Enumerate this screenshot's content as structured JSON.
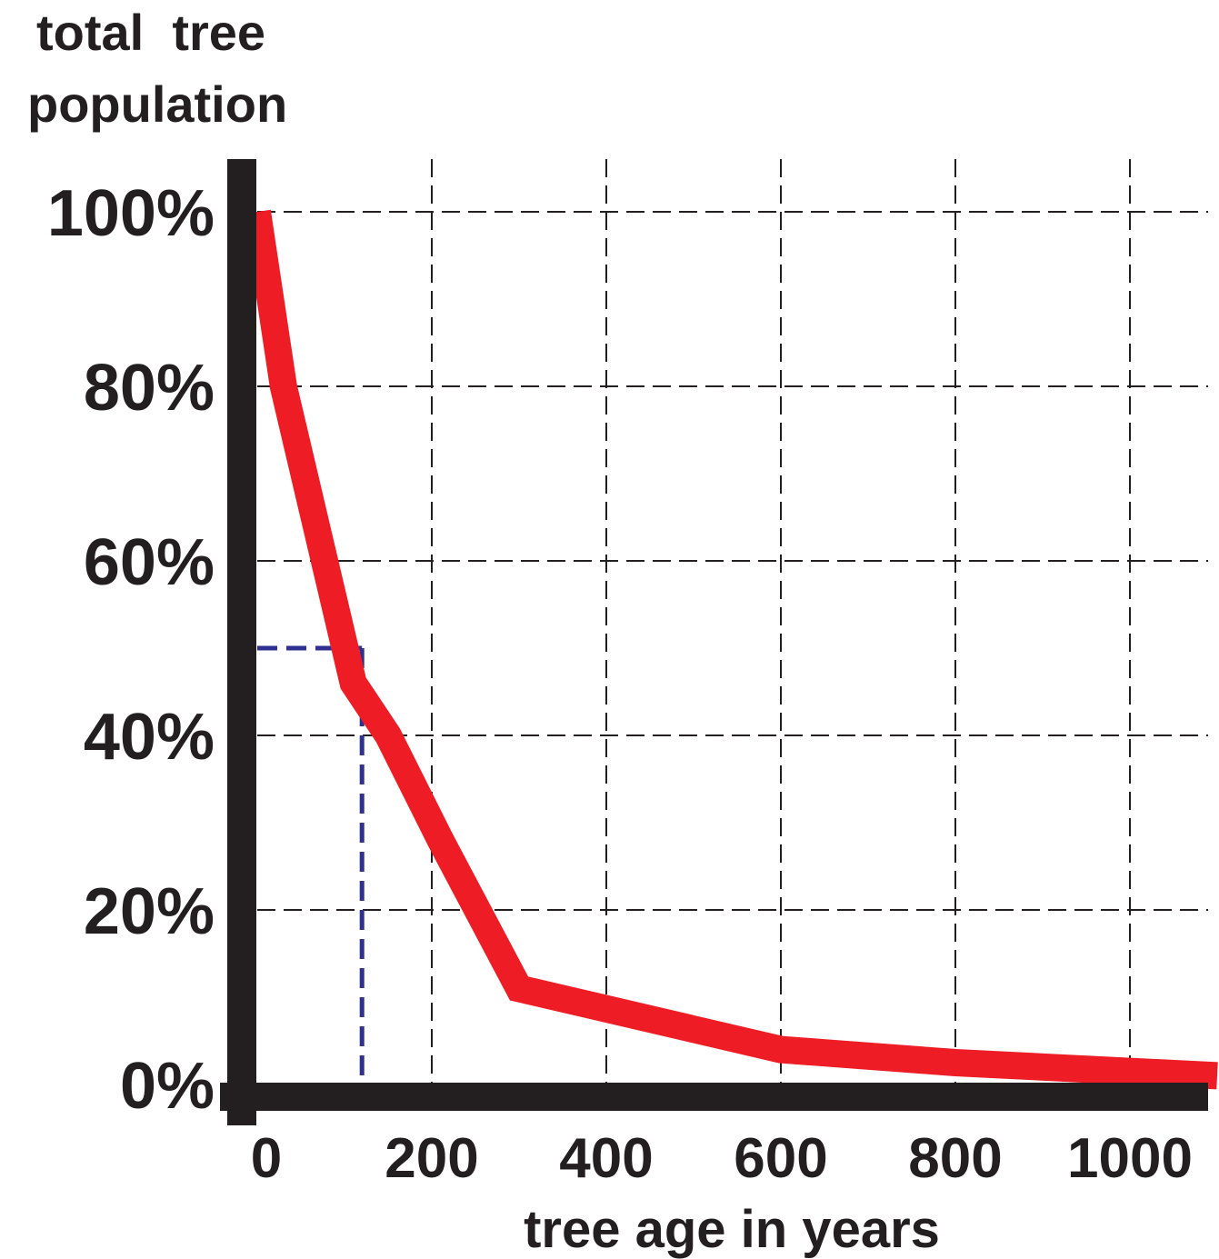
{
  "chart_data": {
    "type": "line",
    "ylabel_lines": [
      "total  tree",
      "population"
    ],
    "xlabel": "tree age in years",
    "x_ticks": [
      "0",
      "200",
      "400",
      "600",
      "800",
      "1000"
    ],
    "y_ticks": [
      "0%",
      "20%",
      "40%",
      "60%",
      "80%",
      "100%"
    ],
    "xlim": [
      0,
      1100
    ],
    "ylim": [
      0,
      100
    ],
    "grid": true,
    "series": [
      {
        "x": [
          0,
          30,
          110,
          150,
          210,
          300,
          600,
          800,
          1100
        ],
        "y": [
          100,
          80,
          46,
          40,
          28,
          11,
          4,
          2.5,
          1
        ],
        "color": "#ee1c25"
      }
    ],
    "reference_lines": {
      "x": 120,
      "y": 50,
      "color": "#2e3192"
    },
    "axis_color": "#231f20"
  }
}
